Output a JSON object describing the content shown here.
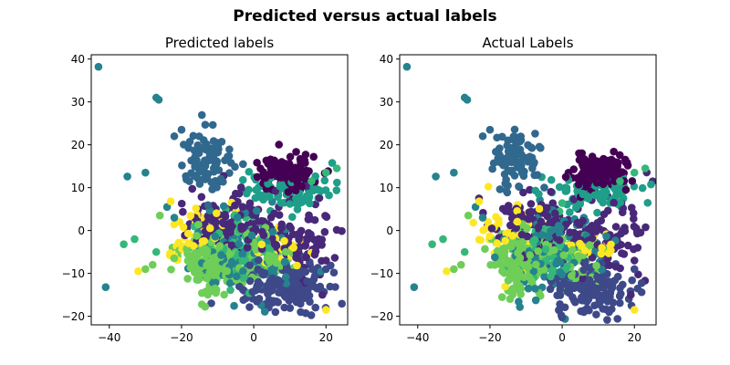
{
  "figure": {
    "suptitle": "Predicted versus actual labels"
  },
  "chart_data": [
    {
      "type": "scatter",
      "title": "Predicted labels",
      "xlabel": "",
      "ylabel": "",
      "xlim": [
        -45,
        26
      ],
      "ylim": [
        -22,
        41
      ],
      "xticks": [
        -40,
        -20,
        0,
        20
      ],
      "yticks": [
        -20,
        -10,
        0,
        10,
        20,
        30,
        40
      ],
      "grid": false,
      "legend": "none",
      "colormap": "viridis",
      "colors": [
        "#440154",
        "#482878",
        "#3e4989",
        "#31688e",
        "#26828e",
        "#1f9e89",
        "#35b779",
        "#6ece58",
        "#fde725"
      ],
      "clusters": [
        {
          "class": 0,
          "center": [
            10,
            13.5
          ],
          "spread": [
            3.5,
            2.0
          ],
          "n": 130
        },
        {
          "class": 1,
          "center": [
            -7,
            1.5
          ],
          "spread": [
            6.0,
            3.5
          ],
          "n": 120
        },
        {
          "class": 1,
          "center": [
            12,
            -2
          ],
          "spread": [
            5.5,
            4.5
          ],
          "n": 90
        },
        {
          "class": 2,
          "center": [
            8,
            -13
          ],
          "spread": [
            5.5,
            3.0
          ],
          "n": 150
        },
        {
          "class": 3,
          "center": [
            -13,
            17
          ],
          "spread": [
            3.5,
            3.5
          ],
          "n": 90
        },
        {
          "class": 4,
          "center": [
            -3,
            -5
          ],
          "spread": [
            7.0,
            5.0
          ],
          "n": 110
        },
        {
          "class": 5,
          "center": [
            10,
            9
          ],
          "spread": [
            6.5,
            2.0
          ],
          "n": 80
        },
        {
          "class": 6,
          "center": [
            -5,
            -4
          ],
          "spread": [
            5.0,
            3.5
          ],
          "n": 70
        },
        {
          "class": 7,
          "center": [
            -12,
            -7
          ],
          "spread": [
            3.5,
            3.5
          ],
          "n": 160
        },
        {
          "class": 7,
          "center": [
            3,
            -6
          ],
          "spread": [
            4.0,
            2.5
          ],
          "n": 60
        },
        {
          "class": 8,
          "center": [
            -15,
            -1
          ],
          "spread": [
            5.0,
            4.0
          ],
          "n": 40
        },
        {
          "class": 8,
          "center": [
            6,
            -4
          ],
          "spread": [
            4.5,
            2.0
          ],
          "n": 25
        }
      ],
      "points": [
        {
          "class": 4,
          "x": -43,
          "y": 38.2
        },
        {
          "class": 4,
          "x": -27,
          "y": 31
        },
        {
          "class": 4,
          "x": -26.3,
          "y": 30.5
        },
        {
          "class": 4,
          "x": -35,
          "y": 12.6
        },
        {
          "class": 4,
          "x": -41,
          "y": -13.2
        },
        {
          "class": 4,
          "x": -24,
          "y": 5.5
        },
        {
          "class": 4,
          "x": -30,
          "y": 13.5
        },
        {
          "class": 3,
          "x": -22,
          "y": 22
        },
        {
          "class": 3,
          "x": -20,
          "y": 23.5
        },
        {
          "class": 6,
          "x": 23,
          "y": 14.5
        },
        {
          "class": 6,
          "x": 20,
          "y": 13.5
        },
        {
          "class": 6,
          "x": 16,
          "y": 11.5
        },
        {
          "class": 6,
          "x": -36,
          "y": -3.2
        },
        {
          "class": 6,
          "x": -33,
          "y": -2
        },
        {
          "class": 6,
          "x": -27,
          "y": -5
        },
        {
          "class": 7,
          "x": -30,
          "y": -9
        },
        {
          "class": 7,
          "x": -28,
          "y": -8
        },
        {
          "class": 7,
          "x": -26,
          "y": 3.5
        },
        {
          "class": 8,
          "x": -32,
          "y": -9.5
        },
        {
          "class": 8,
          "x": -23,
          "y": 6.8
        },
        {
          "class": 8,
          "x": -20.5,
          "y": 2
        },
        {
          "class": 8,
          "x": -18,
          "y": -3
        },
        {
          "class": 4,
          "x": -22,
          "y": 3
        },
        {
          "class": 0,
          "x": 1,
          "y": 12.5
        },
        {
          "class": 5,
          "x": -3,
          "y": 11.8
        },
        {
          "class": 2,
          "x": 13,
          "y": -19
        },
        {
          "class": 2,
          "x": 6,
          "y": -19
        },
        {
          "class": 2,
          "x": 20,
          "y": -9
        },
        {
          "class": 1,
          "x": 20,
          "y": -7
        },
        {
          "class": 1,
          "x": 19,
          "y": -15
        },
        {
          "class": 8,
          "x": 20,
          "y": -18.5
        },
        {
          "class": 8,
          "x": 11,
          "y": -4
        }
      ],
      "seed": 7
    },
    {
      "type": "scatter",
      "title": "Actual Labels",
      "xlabel": "",
      "ylabel": "",
      "xlim": [
        -45,
        26
      ],
      "ylim": [
        -22,
        41
      ],
      "xticks": [
        -40,
        -20,
        0,
        20
      ],
      "yticks": [
        -20,
        -10,
        0,
        10,
        20,
        30,
        40
      ],
      "grid": false,
      "legend": "none",
      "colormap": "viridis",
      "colors": [
        "#440154",
        "#482878",
        "#3e4989",
        "#31688e",
        "#26828e",
        "#1f9e89",
        "#35b779",
        "#6ece58",
        "#fde725"
      ],
      "clusters": [
        {
          "class": 0,
          "center": [
            10,
            13.5
          ],
          "spread": [
            3.5,
            2.0
          ],
          "n": 130
        },
        {
          "class": 1,
          "center": [
            -7,
            1.5
          ],
          "spread": [
            6.0,
            3.5
          ],
          "n": 120
        },
        {
          "class": 1,
          "center": [
            12,
            -2
          ],
          "spread": [
            5.5,
            4.5
          ],
          "n": 90
        },
        {
          "class": 2,
          "center": [
            8,
            -13
          ],
          "spread": [
            5.5,
            3.0
          ],
          "n": 150
        },
        {
          "class": 3,
          "center": [
            -13,
            17
          ],
          "spread": [
            3.5,
            3.5
          ],
          "n": 90
        },
        {
          "class": 4,
          "center": [
            -3,
            -5
          ],
          "spread": [
            7.0,
            5.0
          ],
          "n": 110
        },
        {
          "class": 5,
          "center": [
            10,
            9
          ],
          "spread": [
            6.5,
            2.0
          ],
          "n": 80
        },
        {
          "class": 6,
          "center": [
            -5,
            -4
          ],
          "spread": [
            5.0,
            3.5
          ],
          "n": 70
        },
        {
          "class": 7,
          "center": [
            -12,
            -7
          ],
          "spread": [
            3.5,
            3.5
          ],
          "n": 160
        },
        {
          "class": 7,
          "center": [
            3,
            -6
          ],
          "spread": [
            4.0,
            2.5
          ],
          "n": 60
        },
        {
          "class": 8,
          "center": [
            -15,
            -1
          ],
          "spread": [
            5.0,
            4.0
          ],
          "n": 40
        },
        {
          "class": 8,
          "center": [
            6,
            -4
          ],
          "spread": [
            4.5,
            2.0
          ],
          "n": 25
        }
      ],
      "points": [
        {
          "class": 4,
          "x": -43,
          "y": 38.2
        },
        {
          "class": 4,
          "x": -27,
          "y": 31
        },
        {
          "class": 4,
          "x": -26.3,
          "y": 30.5
        },
        {
          "class": 4,
          "x": -35,
          "y": 12.6
        },
        {
          "class": 4,
          "x": -41,
          "y": -13.2
        },
        {
          "class": 4,
          "x": -24,
          "y": 5.5
        },
        {
          "class": 4,
          "x": -30,
          "y": 13.5
        },
        {
          "class": 3,
          "x": -22,
          "y": 22
        },
        {
          "class": 3,
          "x": -20,
          "y": 23.5
        },
        {
          "class": 6,
          "x": 23,
          "y": 14.5
        },
        {
          "class": 6,
          "x": 20,
          "y": 13.5
        },
        {
          "class": 6,
          "x": 16,
          "y": 11.5
        },
        {
          "class": 6,
          "x": -36,
          "y": -3.2
        },
        {
          "class": 6,
          "x": -33,
          "y": -2
        },
        {
          "class": 6,
          "x": -27,
          "y": -5
        },
        {
          "class": 7,
          "x": -30,
          "y": -9
        },
        {
          "class": 7,
          "x": -28,
          "y": -8
        },
        {
          "class": 7,
          "x": -26,
          "y": 3.5
        },
        {
          "class": 8,
          "x": -32,
          "y": -9.5
        },
        {
          "class": 8,
          "x": -23,
          "y": 6.8
        },
        {
          "class": 8,
          "x": -20.5,
          "y": 2
        },
        {
          "class": 8,
          "x": -18,
          "y": -3
        },
        {
          "class": 4,
          "x": -22,
          "y": 3
        },
        {
          "class": 0,
          "x": 1,
          "y": 12.5
        },
        {
          "class": 5,
          "x": -3,
          "y": 11.8
        },
        {
          "class": 2,
          "x": 13,
          "y": -19
        },
        {
          "class": 2,
          "x": 6,
          "y": -19
        },
        {
          "class": 2,
          "x": 20,
          "y": -9
        },
        {
          "class": 1,
          "x": 20,
          "y": -7
        },
        {
          "class": 1,
          "x": 19,
          "y": -15
        },
        {
          "class": 8,
          "x": 20,
          "y": -18.5
        },
        {
          "class": 8,
          "x": 11,
          "y": -4
        }
      ],
      "seed": 11
    }
  ]
}
